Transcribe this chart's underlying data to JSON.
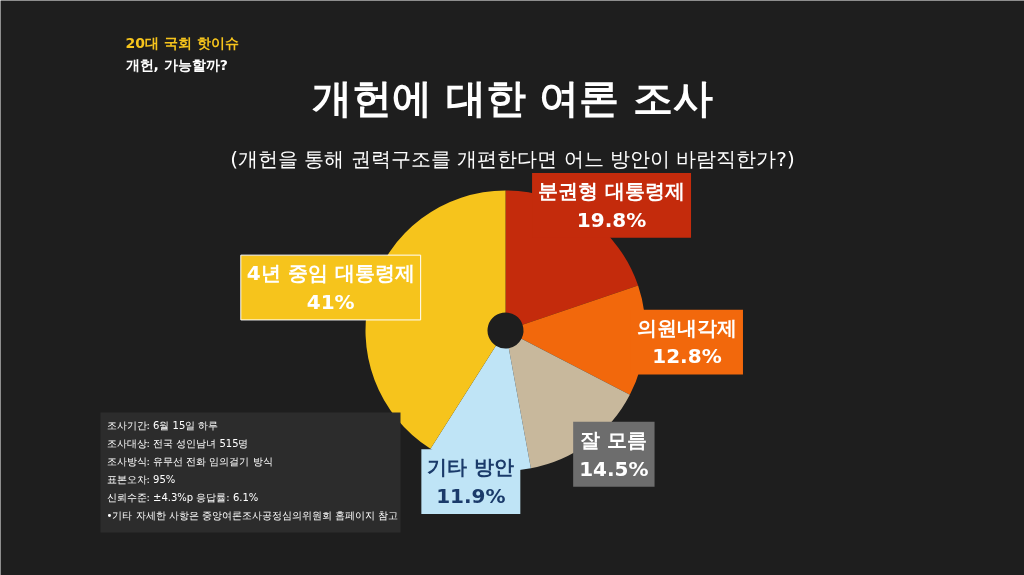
{
  "chart_data": {
    "type": "donut",
    "title": "개헌에 대한 여론 조사",
    "subtitle": "(개헌을 통해 권력구조를 개편한다면 어느 방안이 바람직한가?)",
    "categories": [
      "분권형 대통령제",
      "의원내각제",
      "잘 모름",
      "기타 방안",
      "4년 중임 대통령제"
    ],
    "values": [
      19.8,
      12.8,
      14.5,
      11.9,
      41
    ],
    "value_labels": [
      "19.8%",
      "12.8%",
      "14.5%",
      "11.9%",
      "41%"
    ],
    "colors": [
      "#c42b0c",
      "#f2680c",
      "#c8b89c",
      "#bfe4f6",
      "#f6c41c"
    ],
    "annotations": [
      "20대 국회 핫이슈",
      "개헌, 가능할까?",
      "조사기간: 6월 15일 하루",
      "조사대상: 전국 성인남녀 515명",
      "조사방식: 유무선 전화 임의걸기 방식",
      "표본오차: 95%",
      "신뢰수준: ±4.3%p   응답률: 6.1%",
      "•기타 자세한 사항은 중앙여론조사공정심의위원회 홈페이지 참고"
    ]
  }
}
